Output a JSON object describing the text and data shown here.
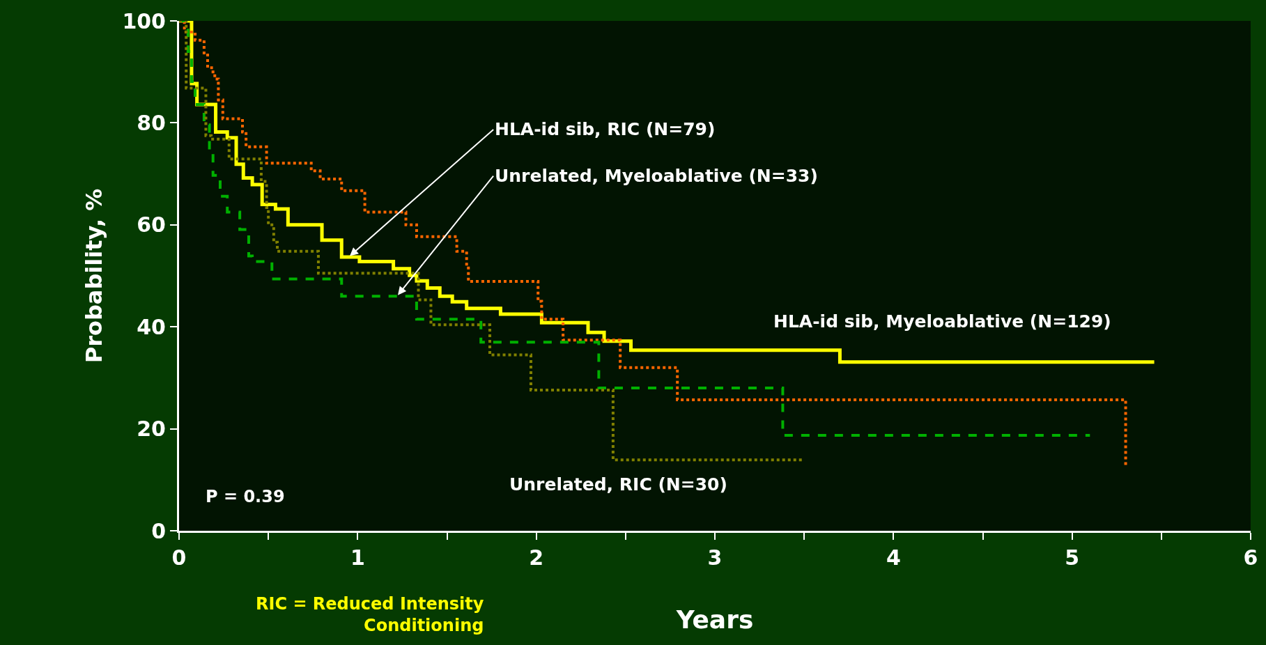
{
  "chart_data": {
    "type": "step",
    "xlabel": "Years",
    "ylabel": "Probability, %",
    "xlim": [
      0,
      6
    ],
    "xticks": [
      0,
      {
        "value": 0.5,
        "label": null
      },
      1,
      {
        "value": 1.5,
        "label": null
      },
      2,
      {
        "value": 2.5,
        "label": null
      },
      3,
      {
        "value": 3.5,
        "label": null
      },
      4,
      {
        "value": 4.5,
        "label": null
      },
      5,
      {
        "value": 5.5,
        "label": null
      },
      6
    ],
    "ylim": [
      0,
      100
    ],
    "yticks": [
      0,
      20,
      40,
      60,
      80,
      100
    ],
    "grid": false,
    "legend": false,
    "marker": "none",
    "annotations": [
      {
        "text": "HLA-id sib, RIC (N=79)",
        "x": 0.95,
        "y": 53.7
      },
      {
        "text": "Unrelated, Myeloablative (N=33)",
        "x": 1.22,
        "y": 46.0
      },
      "P = 0.39",
      "RIC = Reduced Intensity\nConditioning"
    ],
    "series": [
      {
        "name": "HLA-id sib, Myeloablative (N=129)",
        "color": "#ffff00",
        "line_style": "solid",
        "x": [
          0,
          0.07,
          0.1,
          0.205,
          0.27,
          0.32,
          0.36,
          0.41,
          0.465,
          0.54,
          0.61,
          0.8,
          0.91,
          1.01,
          1.2,
          1.29,
          1.33,
          1.39,
          1.46,
          1.53,
          1.61,
          1.8,
          2.03,
          2.29,
          2.38,
          2.53,
          3.7,
          5.46
        ],
        "values": [
          100,
          87.7,
          83.6,
          78.2,
          77.1,
          71.9,
          69.2,
          67.9,
          64.0,
          63.1,
          60.0,
          57.0,
          53.7,
          52.8,
          51.4,
          50.1,
          49.0,
          47.6,
          46.0,
          44.9,
          43.6,
          42.5,
          40.8,
          38.9,
          37.2,
          35.4,
          33.1,
          33.1
        ]
      },
      {
        "color": "#ff6600",
        "line_style": "dotted",
        "x": [
          0,
          0.03,
          0.09,
          0.14,
          0.16,
          0.19,
          0.2,
          0.22,
          0.245,
          0.355,
          0.375,
          0.49,
          0.74,
          0.79,
          0.91,
          1.04,
          1.27,
          1.33,
          1.555,
          1.61,
          1.62,
          2.01,
          2.03,
          2.15,
          2.47,
          2.79,
          5.3,
          5.3
        ],
        "values": [
          100,
          97.8,
          96.2,
          93.3,
          90.8,
          89.7,
          88.6,
          84.5,
          80.8,
          78.2,
          75.3,
          72.1,
          70.6,
          69.0,
          66.7,
          62.5,
          60.0,
          57.7,
          54.8,
          51.9,
          48.9,
          45.0,
          41.5,
          37.4,
          32.0,
          25.7,
          25.7,
          12.9
        ]
      },
      {
        "color": "#00b000",
        "line_style": "dashed",
        "x": [
          0,
          0.05,
          0.07,
          0.09,
          0.14,
          0.17,
          0.19,
          0.23,
          0.27,
          0.34,
          0.39,
          0.41,
          0.52,
          0.91,
          1.33,
          1.69,
          2.35,
          3.38,
          5.1
        ],
        "values": [
          100,
          94.0,
          88.1,
          83.6,
          79.6,
          74.6,
          69.7,
          65.6,
          62.5,
          59.1,
          53.9,
          52.8,
          49.4,
          46.0,
          41.5,
          37.0,
          28.0,
          18.7,
          18.7
        ]
      },
      {
        "name": "Unrelated, RIC (N=30)",
        "color": "#808000",
        "line_style": "dotted",
        "x": [
          0,
          0.04,
          0.15,
          0.18,
          0.28,
          0.46,
          0.49,
          0.5,
          0.53,
          0.55,
          0.78,
          1.34,
          1.41,
          1.74,
          1.97,
          2.43,
          3.49
        ],
        "values": [
          100,
          86.8,
          77.5,
          76.8,
          72.9,
          68.5,
          63.4,
          60.0,
          56.6,
          54.8,
          50.5,
          45.3,
          40.4,
          34.5,
          27.6,
          13.9,
          13.9
        ]
      }
    ]
  }
}
